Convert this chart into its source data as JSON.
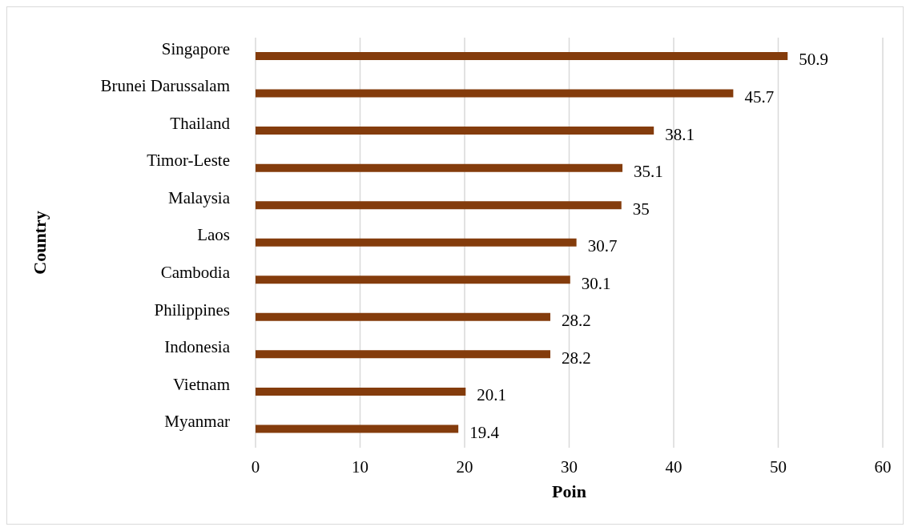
{
  "chart_data": {
    "type": "bar",
    "orientation": "horizontal",
    "xlabel": "Poin",
    "ylabel": "Country",
    "categories": [
      "Singapore",
      "Brunei Darussalam",
      "Thailand",
      "Timor-Leste",
      "Malaysia",
      "Laos",
      "Cambodia",
      "Philippines",
      "Indonesia",
      "Vietnam",
      "Myanmar"
    ],
    "values": [
      50.9,
      45.7,
      38.1,
      35.1,
      35,
      30.7,
      30.1,
      28.2,
      28.2,
      20.1,
      19.4
    ],
    "color": "#843c0c",
    "xlim": [
      0,
      60
    ],
    "xticks": [
      0,
      10,
      20,
      30,
      40,
      50,
      60
    ],
    "grid": "x",
    "data_labels": true,
    "legend": false
  }
}
